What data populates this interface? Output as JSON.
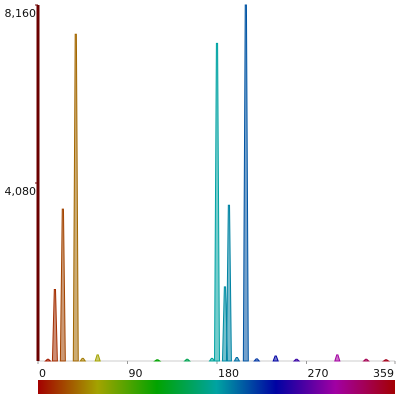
{
  "chart_data": {
    "type": "spike",
    "x": [
      10,
      17,
      25,
      38,
      45,
      60,
      120,
      150,
      175,
      180,
      188,
      192,
      200,
      209,
      220,
      239,
      260,
      301,
      330,
      350
    ],
    "values": [
      40,
      1640,
      3480,
      7490,
      60,
      140,
      30,
      40,
      60,
      7280,
      1700,
      3570,
      80,
      8160,
      50,
      115,
      40,
      140,
      40,
      30
    ],
    "xlim": [
      0,
      359
    ],
    "ylim": [
      0,
      8160
    ],
    "xticks": [
      0,
      90,
      180,
      270,
      359
    ],
    "yticks": [
      {
        "value": 4080,
        "label": "4,080"
      },
      {
        "value": 8160,
        "label": "8,160"
      }
    ]
  }
}
